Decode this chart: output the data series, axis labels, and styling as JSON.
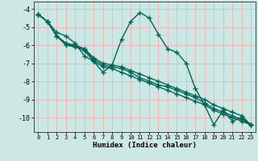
{
  "xlabel": "Humidex (Indice chaleur)",
  "background_color": "#cce8e4",
  "grid_color": "#f0b0b0",
  "line_color": "#006655",
  "x_values": [
    0,
    1,
    2,
    3,
    4,
    5,
    6,
    7,
    8,
    9,
    10,
    11,
    12,
    13,
    14,
    15,
    16,
    17,
    18,
    19,
    20,
    21,
    22,
    23
  ],
  "series": [
    [
      -4.3,
      -4.7,
      -5.3,
      -5.5,
      -5.9,
      -6.6,
      -6.9,
      -7.5,
      -7.1,
      -5.7,
      -4.7,
      -4.2,
      -4.5,
      -5.4,
      -6.2,
      -6.4,
      -7.0,
      -8.4,
      -9.3,
      -10.4,
      -9.6,
      -10.2,
      -10.0,
      -10.4
    ],
    [
      -4.3,
      -4.7,
      -5.5,
      -6.0,
      -6.1,
      -6.2,
      -6.8,
      -7.1,
      -7.2,
      -7.3,
      -7.5,
      -7.8,
      -8.0,
      -8.2,
      -8.3,
      -8.5,
      -8.7,
      -8.9,
      -9.2,
      -9.5,
      -9.7,
      -9.9,
      -10.1,
      -10.4
    ],
    [
      -4.3,
      -4.7,
      -5.5,
      -5.9,
      -6.1,
      -6.3,
      -6.9,
      -7.2,
      -7.3,
      -7.5,
      -7.7,
      -7.9,
      -8.1,
      -8.3,
      -8.5,
      -8.7,
      -8.9,
      -9.1,
      -9.3,
      -9.6,
      -9.8,
      -10.0,
      -10.2,
      -10.4
    ],
    [
      -4.3,
      -4.7,
      -5.5,
      -5.9,
      -6.0,
      -6.2,
      -6.7,
      -7.0,
      -7.1,
      -7.2,
      -7.4,
      -7.6,
      -7.8,
      -8.0,
      -8.2,
      -8.4,
      -8.6,
      -8.8,
      -9.0,
      -9.3,
      -9.5,
      -9.7,
      -9.9,
      -10.4
    ]
  ],
  "ylim": [
    -10.8,
    -3.6
  ],
  "xlim": [
    -0.5,
    23.5
  ],
  "yticks": [
    -10,
    -9,
    -8,
    -7,
    -6,
    -5,
    -4
  ],
  "marker": "+",
  "markersize": 4,
  "linewidth": 1.0
}
